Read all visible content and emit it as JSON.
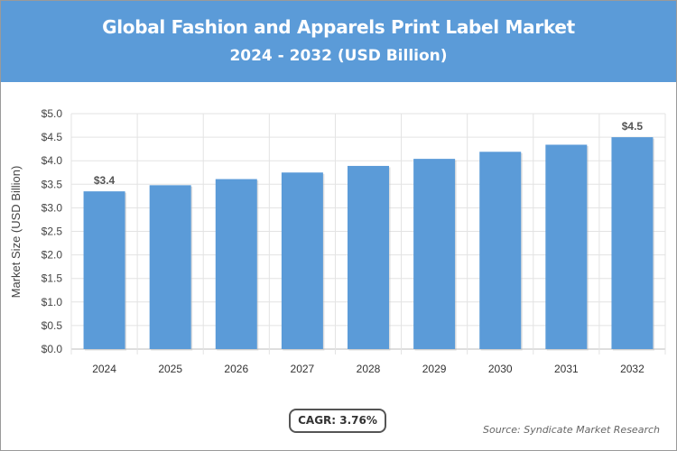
{
  "header": {
    "title": "Global Fashion and Apparels Print Label Market",
    "subtitle": "2024 - 2032 (USD Billion)"
  },
  "colors": {
    "header_bg": "#5b9bd8",
    "bar": "#5b9bd8",
    "grid": "#e3e3e3"
  },
  "cagr_label": "CAGR: 3.76%",
  "source": "Source: Syndicate Market Research",
  "chart_data": {
    "type": "bar",
    "title": "Global Fashion and Apparels Print Label Market",
    "subtitle": "2024 - 2032 (USD Billion)",
    "xlabel": "",
    "ylabel": "Market Size (USD Billion)",
    "categories": [
      "2024",
      "2025",
      "2026",
      "2027",
      "2028",
      "2029",
      "2030",
      "2031",
      "2032"
    ],
    "values": [
      3.35,
      3.48,
      3.61,
      3.75,
      3.89,
      4.04,
      4.19,
      4.34,
      4.5
    ],
    "data_labels": [
      {
        "index": 0,
        "text": "$3.4"
      },
      {
        "index": 8,
        "text": "$4.5"
      }
    ],
    "ylim": [
      0,
      5
    ],
    "yticks": [
      {
        "value": 0,
        "label": "$0.0"
      },
      {
        "value": 0.5,
        "label": "$0.5"
      },
      {
        "value": 1,
        "label": "$1.0"
      },
      {
        "value": 1.5,
        "label": "$1.5"
      },
      {
        "value": 2,
        "label": "$2.0"
      },
      {
        "value": 2.5,
        "label": "$2.5"
      },
      {
        "value": 3,
        "label": "$3.0"
      },
      {
        "value": 3.5,
        "label": "$3.5"
      },
      {
        "value": 4,
        "label": "$4.0"
      },
      {
        "value": 4.5,
        "label": "$4.5"
      },
      {
        "value": 5,
        "label": "$5.0"
      }
    ],
    "grid": true,
    "legend": "none"
  }
}
